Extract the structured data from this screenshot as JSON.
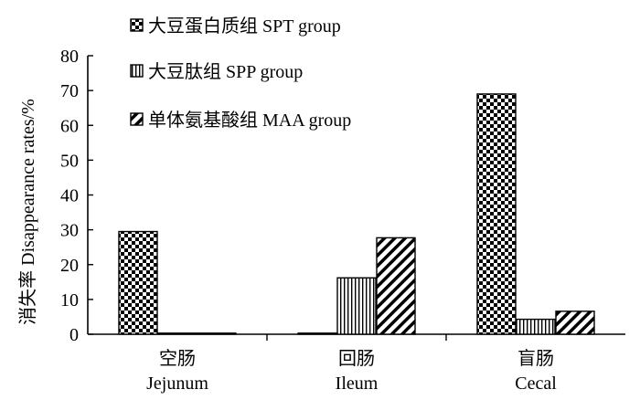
{
  "chart_data": {
    "type": "bar",
    "ylabel": "消失率  Disappearance rates/%",
    "ylim": [
      0,
      80
    ],
    "yticks": [
      0,
      10,
      20,
      30,
      40,
      50,
      60,
      70,
      80
    ],
    "grid": false,
    "legend_position": "top-left",
    "categories": [
      {
        "zh": "空肠",
        "en": "Jejunum"
      },
      {
        "zh": "回肠",
        "en": "Ileum"
      },
      {
        "zh": "盲肠",
        "en": "Cecal"
      }
    ],
    "series": [
      {
        "name": "大豆蛋白质组 SPT group",
        "pattern": "checker",
        "values": [
          29.5,
          0,
          69
        ]
      },
      {
        "name": "大豆肽组 SPP group",
        "pattern": "vertical-lines",
        "values": [
          0,
          16.2,
          4.3
        ]
      },
      {
        "name": "单体氨基酸组 MAA group",
        "pattern": "diagonal-lines",
        "values": [
          0,
          27.7,
          6.6
        ]
      }
    ]
  }
}
